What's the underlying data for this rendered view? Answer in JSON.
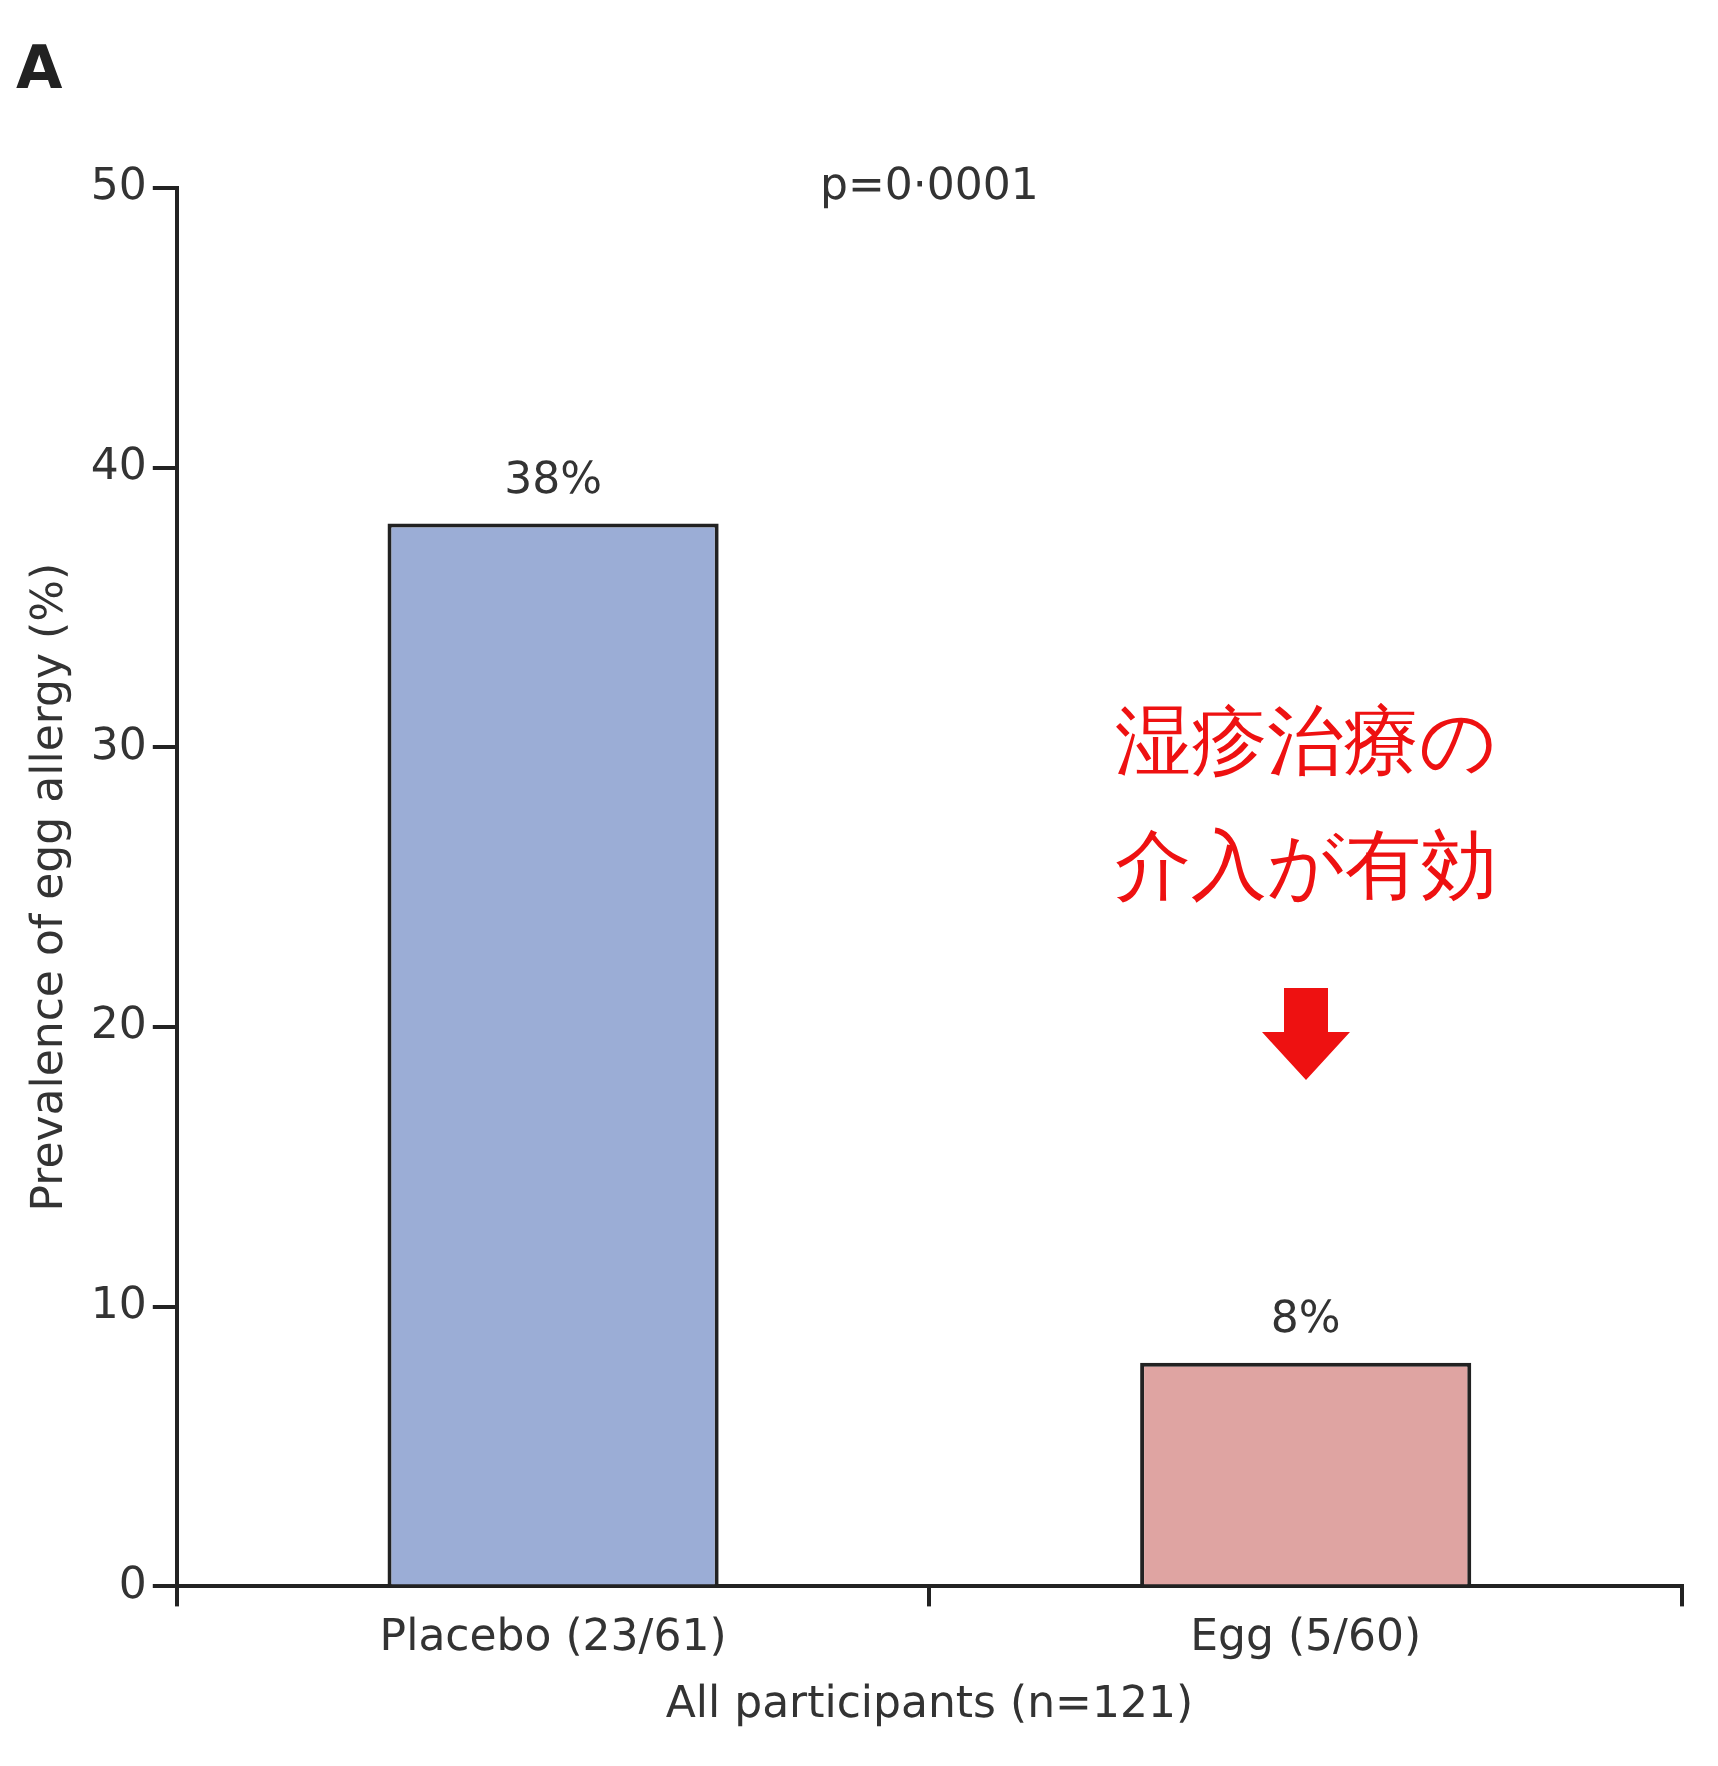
{
  "chart_data": {
    "type": "bar",
    "title": "A",
    "xlabel": "All participants (n=121)",
    "ylabel": "Prevalence of egg allergy (%)",
    "categories": [
      "Placebo (23/61)",
      "Egg (5/60)"
    ],
    "values": [
      38,
      8
    ],
    "value_labels": [
      "38%",
      "8%"
    ],
    "colors": [
      "#9badd6",
      "#dfa4a2"
    ],
    "ylim": [
      0,
      50
    ],
    "yticks": [
      0,
      10,
      20,
      30,
      40,
      50
    ],
    "grid": false,
    "legend": false,
    "annotations": [
      "p=0·0001",
      "湿疹治療の介入が有効"
    ]
  }
}
